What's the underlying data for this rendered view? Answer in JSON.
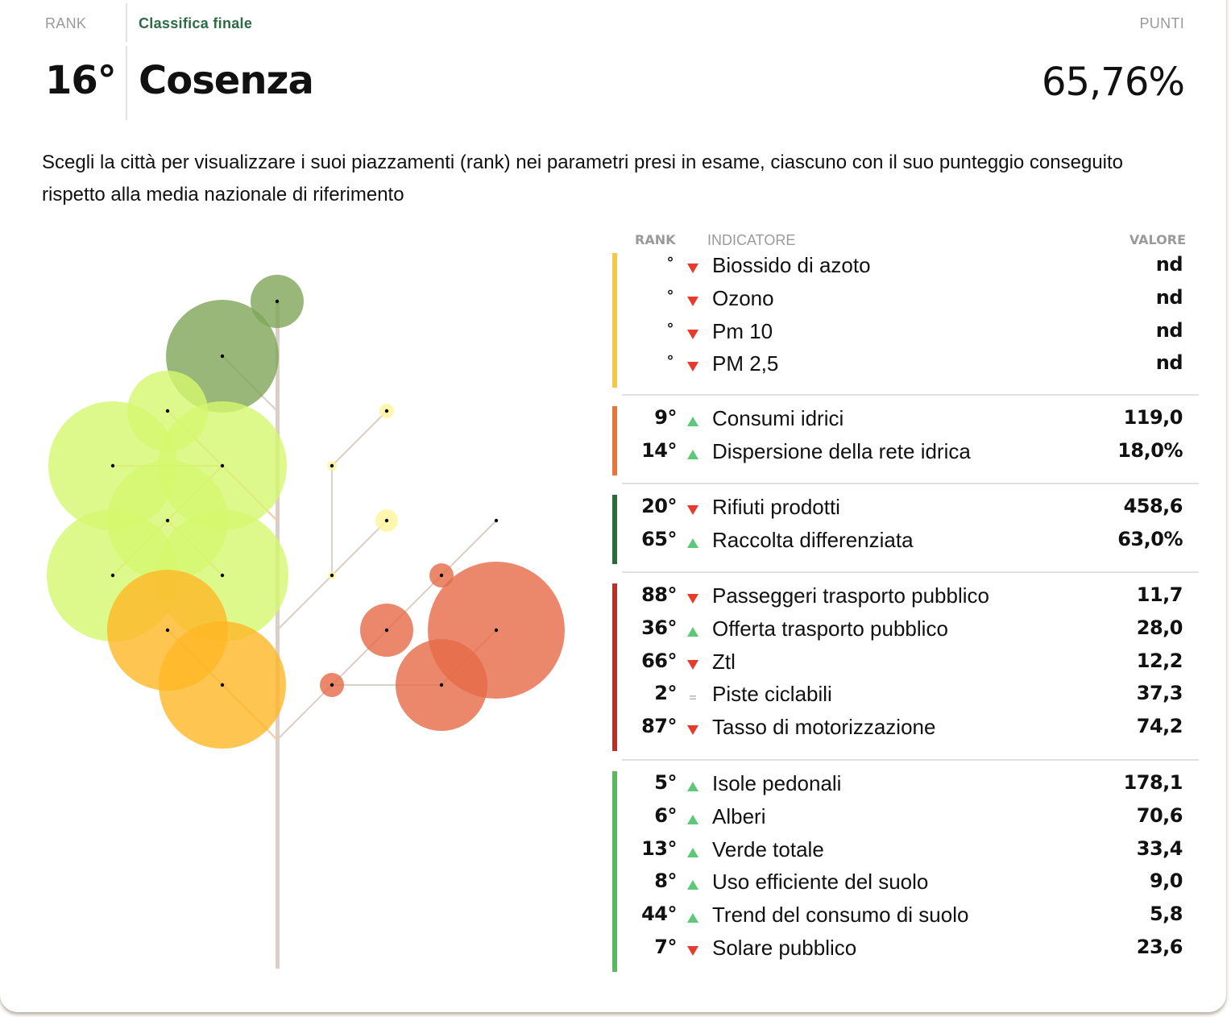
{
  "header": {
    "rank_label": "RANK",
    "category_label": "Classifica finale",
    "points_label": "PUNTI",
    "rank": "16°",
    "city": "Cosenza",
    "score": "65,76%"
  },
  "intro": "Scegli la città per visualizzare i suoi piazzamenti (rank) nei parametri presi in esame, ciascuno con il suo punteggio conseguito rispetto alla media nazionale di riferimento",
  "table": {
    "columns": {
      "rank": "RANK",
      "indicator": "INDICATORE",
      "value": "VALORE"
    },
    "groups": [
      {
        "color": "#f2c94c",
        "rows": [
          {
            "rank": "°",
            "trend": "down",
            "label": "Biossido di azoto",
            "value": "nd"
          },
          {
            "rank": "°",
            "trend": "down",
            "label": "Ozono",
            "value": "nd"
          },
          {
            "rank": "°",
            "trend": "down",
            "label": "Pm 10",
            "value": "nd"
          },
          {
            "rank": "°",
            "trend": "down",
            "label": "PM 2,5",
            "value": "nd"
          }
        ]
      },
      {
        "color": "#e8763a",
        "rows": [
          {
            "rank": "9°",
            "trend": "up",
            "label": "Consumi idrici",
            "value": "119,0"
          },
          {
            "rank": "14°",
            "trend": "up",
            "label": "Dispersione della rete idrica",
            "value": "18,0%"
          }
        ]
      },
      {
        "color": "#2e6b3a",
        "rows": [
          {
            "rank": "20°",
            "trend": "down",
            "label": "Rifiuti prodotti",
            "value": "458,6"
          },
          {
            "rank": "65°",
            "trend": "up",
            "label": "Raccolta differenziata",
            "value": "63,0%"
          }
        ]
      },
      {
        "color": "#b8302a",
        "rows": [
          {
            "rank": "88°",
            "trend": "down",
            "label": "Passeggeri trasporto pubblico",
            "value": "11,7"
          },
          {
            "rank": "36°",
            "trend": "up",
            "label": "Offerta trasporto pubblico",
            "value": "28,0"
          },
          {
            "rank": "66°",
            "trend": "down",
            "label": "Ztl",
            "value": "12,2"
          },
          {
            "rank": "2°",
            "trend": "equal",
            "label": "Piste ciclabili",
            "value": "37,3"
          },
          {
            "rank": "87°",
            "trend": "down",
            "label": "Tasso di motorizzazione",
            "value": "74,2"
          }
        ]
      },
      {
        "color": "#5cb85c",
        "rows": [
          {
            "rank": "5°",
            "trend": "up",
            "label": "Isole pedonali",
            "value": "178,1"
          },
          {
            "rank": "6°",
            "trend": "up",
            "label": "Alberi",
            "value": "70,6"
          },
          {
            "rank": "13°",
            "trend": "up",
            "label": "Verde totale",
            "value": "33,4"
          },
          {
            "rank": "8°",
            "trend": "up",
            "label": "Uso efficiente del suolo",
            "value": "9,0"
          },
          {
            "rank": "44°",
            "trend": "up",
            "label": "Trend del consumo di suolo",
            "value": "5,8"
          },
          {
            "rank": "7°",
            "trend": "down",
            "label": "Solare pubblico",
            "value": "23,6"
          }
        ]
      }
    ]
  },
  "trend_colors": {
    "up": "#5cc878",
    "down": "#e8392a",
    "equal": "#b8b8b8"
  },
  "tree_colors": {
    "dark_green": "#7fa556",
    "light_green": "#d4f76e",
    "orange": "#ffb726",
    "yellow": "#fff59a",
    "red": "#e66a47",
    "branch": "#dccfc6",
    "branch_warm": "#f6c7a0"
  }
}
